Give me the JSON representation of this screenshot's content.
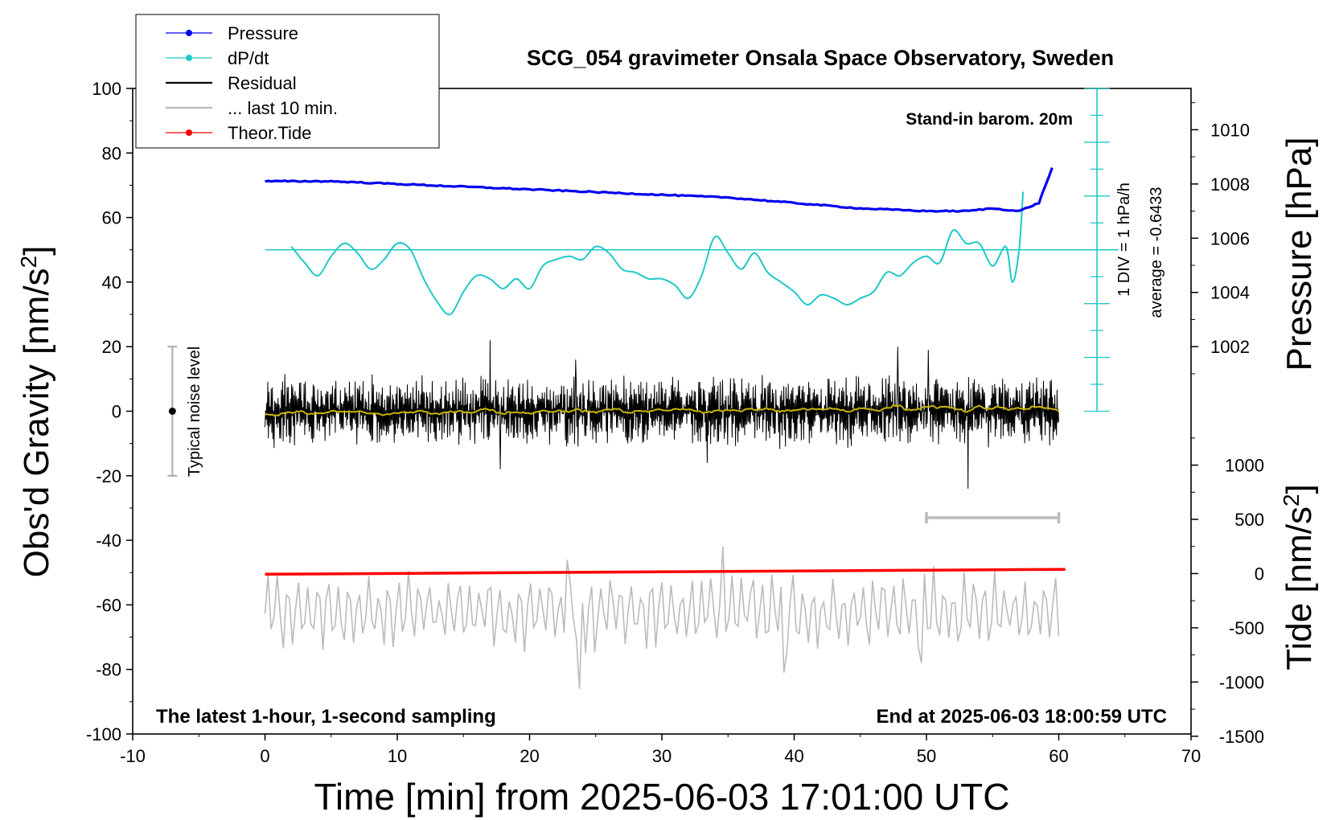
{
  "chart_data": {
    "type": "line",
    "title": "SCG_054 gravimeter Onsala Space Observatory, Sweden",
    "xlabel": "Time [min] from 2025-06-03 17:01:00 UTC",
    "ylabel_left": "Obs'd Gravity [nm/s",
    "ylabel_left_sup": "2",
    "ylabel_left_close": "]",
    "ylabel_pressure": "Pressure [hPa]",
    "ylabel_tide": "Tide [nm/s",
    "ylabel_tide_sup": "2",
    "ylabel_tide_close": "]",
    "xlim": [
      -10,
      70
    ],
    "ylim_left": [
      -100,
      100
    ],
    "x_ticks": [
      "-10",
      "0",
      "10",
      "20",
      "30",
      "40",
      "50",
      "60",
      "70"
    ],
    "y_ticks_left": [
      "-100",
      "-80",
      "-60",
      "-40",
      "-20",
      "0",
      "20",
      "40",
      "60",
      "80",
      "100"
    ],
    "pressure_ticks": [
      "1002",
      "1004",
      "1006",
      "1008",
      "1010"
    ],
    "tide_ticks": [
      "-1500",
      "-1000",
      "-500",
      "0",
      "500",
      "1000"
    ],
    "legend": {
      "position": "top-left",
      "entries": [
        {
          "label": "Pressure",
          "color": "#0000ee",
          "marker": true
        },
        {
          "label": "dP/dt",
          "color": "#20c8c8",
          "marker": true
        },
        {
          "label": "Residual",
          "color": "#000000",
          "marker": false
        },
        {
          "label": "... last 10 min.",
          "color": "#bbbbbb",
          "marker": false
        },
        {
          "label": "Theor.Tide",
          "color": "#ff0000",
          "marker": true
        }
      ]
    },
    "annotations": {
      "stand_in": "Stand-in barom. 20m",
      "div_label": "1 DIV = 1 hPa/h",
      "average_label": "average = -0.6433",
      "noise_label": "Typical noise level",
      "bottom_left": "The latest 1-hour, 1-second sampling",
      "bottom_right": "End at 2025-06-03 18:00:59 UTC"
    },
    "series": [
      {
        "name": "Pressure",
        "axis": "pressure_hPa",
        "x": [
          0,
          5,
          10,
          15,
          20,
          25,
          30,
          35,
          40,
          45,
          50,
          53,
          55,
          57,
          58.5,
          59.5
        ],
        "values": [
          1008.1,
          1008.1,
          1008.0,
          1007.9,
          1007.8,
          1007.7,
          1007.6,
          1007.5,
          1007.3,
          1007.1,
          1007.0,
          1007.0,
          1007.1,
          1007.0,
          1007.3,
          1008.6
        ]
      },
      {
        "name": "dP/dt",
        "axis": "gravity_plot_units",
        "x": [
          2,
          3,
          4,
          5,
          6,
          7,
          8,
          9,
          10,
          11,
          12,
          13,
          14,
          15,
          16,
          17,
          18,
          19,
          20,
          21,
          22,
          23,
          24,
          25,
          26,
          27,
          28,
          29,
          30,
          31,
          32,
          33,
          34,
          35,
          36,
          37,
          38,
          39,
          40,
          41,
          42,
          43,
          44,
          45,
          46,
          47,
          48,
          49,
          50,
          51,
          52,
          53,
          54,
          55,
          56,
          56.5,
          57,
          57.3
        ],
        "values": [
          51,
          46,
          42,
          48,
          52,
          49,
          44,
          47,
          52,
          50,
          41,
          34,
          30,
          37,
          42,
          41,
          38,
          41,
          38,
          45,
          47,
          48,
          47,
          51,
          49,
          44,
          43,
          41,
          41,
          39,
          35,
          42,
          54,
          49,
          44,
          49,
          43,
          40,
          37,
          33,
          36,
          35,
          33,
          35,
          37,
          43,
          42,
          46,
          48,
          46,
          56,
          52,
          52,
          45,
          51,
          40,
          50,
          68
        ]
      },
      {
        "name": "Theor.Tide",
        "axis": "gravity_plot_units",
        "x": [
          0,
          60.5
        ],
        "values": [
          -50.5,
          -49
        ]
      },
      {
        "name": "Residual",
        "axis": "gravity_plot_units",
        "x_range": [
          0,
          60
        ],
        "amplitude": 12,
        "extremes_min": -24,
        "extremes_max": 22
      },
      {
        "name": "... last 10 min.",
        "axis": "gravity_plot_units",
        "x_range": [
          0,
          60
        ],
        "center": -62,
        "amplitude": 10,
        "extremes_min": -86,
        "extremes_max": -42
      }
    ],
    "noise_bar": {
      "x": -7,
      "y_low": -20,
      "y_high": 20,
      "dot": 0
    },
    "window_bar": {
      "x_start": 50,
      "x_end": 60,
      "y": -33
    },
    "dpdt_baseline": -0.6433,
    "dpdt_baseline_plot": 50,
    "colors": {
      "pressure": "#0000ee",
      "dpdt": "#20c8c8",
      "residual": "#000000",
      "residual_smooth": "#c8b400",
      "last10": "#bbbbbb",
      "tide": "#ff0000",
      "window_bar": "#bbbbbb",
      "noise_bar": "#aaaaaa"
    }
  }
}
